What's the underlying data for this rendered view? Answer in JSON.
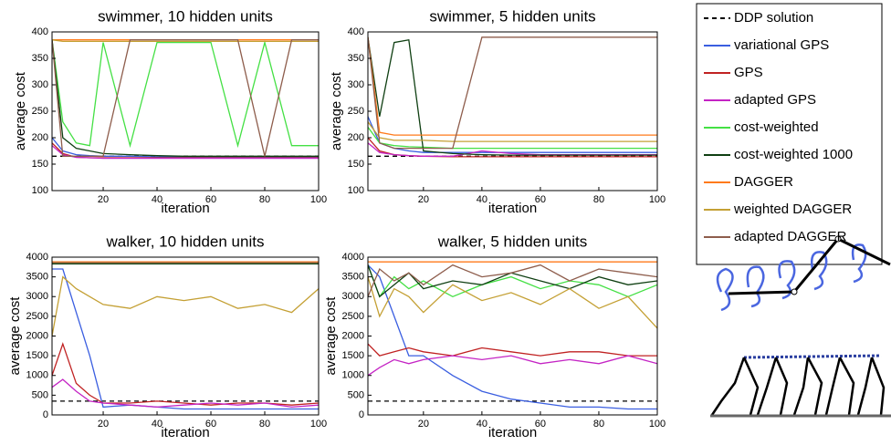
{
  "chart_data": [
    {
      "type": "line",
      "title": "swimmer, 10 hidden units",
      "xlabel": "iteration",
      "ylabel": "average cost",
      "x": [
        1,
        5,
        10,
        15,
        20,
        30,
        40,
        50,
        60,
        70,
        80,
        90,
        100
      ],
      "xlim": [
        1,
        100
      ],
      "xticks": [
        20,
        40,
        60,
        80,
        100
      ],
      "ylim": [
        100,
        400
      ],
      "yticks": [
        100,
        150,
        200,
        250,
        300,
        350,
        400
      ],
      "legend": "outside right",
      "series": [
        {
          "name": "DDP solution",
          "color": "#000000",
          "style": "dashed",
          "values": [
            165,
            165,
            165,
            165,
            165,
            165,
            165,
            165,
            165,
            165,
            165,
            165,
            165
          ]
        },
        {
          "name": "variational GPS",
          "color": "#3a5ee0",
          "values": [
            200,
            175,
            168,
            166,
            165,
            165,
            164,
            164,
            164,
            164,
            164,
            164,
            164
          ]
        },
        {
          "name": "GPS",
          "color": "#c02222",
          "values": [
            190,
            170,
            163,
            162,
            162,
            162,
            162,
            162,
            162,
            162,
            162,
            162,
            162
          ]
        },
        {
          "name": "adapted GPS",
          "color": "#c424c4",
          "values": [
            185,
            168,
            163,
            162,
            161,
            161,
            161,
            161,
            161,
            161,
            161,
            161,
            161
          ]
        },
        {
          "name": "cost-weighted",
          "color": "#44e044",
          "values": [
            385,
            230,
            190,
            185,
            380,
            185,
            380,
            380,
            380,
            185,
            380,
            185,
            185
          ]
        },
        {
          "name": "cost-weighted 1000",
          "color": "#0f3f12",
          "values": [
            385,
            200,
            180,
            175,
            170,
            168,
            166,
            165,
            165,
            165,
            165,
            165,
            165
          ]
        },
        {
          "name": "DAGGER",
          "color": "#ff7a1a",
          "values": [
            385,
            385,
            385,
            385,
            385,
            385,
            385,
            385,
            385,
            385,
            385,
            385,
            385
          ]
        },
        {
          "name": "weighted DAGGER",
          "color": "#c4a034",
          "values": [
            385,
            382,
            382,
            382,
            382,
            382,
            382,
            382,
            382,
            382,
            382,
            382,
            382
          ]
        },
        {
          "name": "adapted DAGGER",
          "color": "#8e5d4c",
          "values": [
            385,
            165,
            165,
            165,
            165,
            385,
            385,
            385,
            385,
            385,
            165,
            385,
            385
          ]
        }
      ]
    },
    {
      "type": "line",
      "title": "swimmer, 5 hidden units",
      "xlabel": "iteration",
      "ylabel": "average cost",
      "x": [
        1,
        5,
        10,
        15,
        20,
        30,
        40,
        50,
        60,
        70,
        80,
        90,
        100
      ],
      "xlim": [
        1,
        100
      ],
      "xticks": [
        20,
        40,
        60,
        80,
        100
      ],
      "ylim": [
        100,
        400
      ],
      "yticks": [
        100,
        150,
        200,
        250,
        300,
        350,
        400
      ],
      "series": [
        {
          "color": "#000000",
          "style": "dashed",
          "values": [
            165,
            165,
            165,
            165,
            165,
            165,
            165,
            165,
            165,
            165,
            165,
            165,
            165
          ]
        },
        {
          "color": "#3a5ee0",
          "values": [
            240,
            190,
            180,
            175,
            172,
            172,
            172,
            172,
            172,
            172,
            172,
            172,
            172
          ]
        },
        {
          "color": "#c02222",
          "values": [
            200,
            175,
            168,
            166,
            165,
            164,
            164,
            164,
            164,
            164,
            164,
            164,
            164
          ]
        },
        {
          "color": "#c424c4",
          "values": [
            190,
            172,
            168,
            166,
            165,
            165,
            175,
            170,
            168,
            168,
            168,
            168,
            168
          ]
        },
        {
          "color": "#44e044",
          "values": [
            220,
            190,
            185,
            183,
            182,
            180,
            180,
            180,
            180,
            180,
            180,
            180,
            180
          ]
        },
        {
          "color": "#0f3f12",
          "values": [
            390,
            240,
            380,
            385,
            175,
            170,
            168,
            167,
            167,
            167,
            167,
            167,
            167
          ]
        },
        {
          "color": "#ff7a1a",
          "values": [
            390,
            210,
            205,
            205,
            205,
            205,
            205,
            205,
            205,
            205,
            205,
            205,
            205
          ]
        },
        {
          "color": "#c4a034",
          "values": [
            230,
            200,
            195,
            195,
            195,
            193,
            193,
            193,
            193,
            193,
            193,
            193,
            193
          ]
        },
        {
          "color": "#8e5d4c",
          "values": [
            390,
            190,
            180,
            180,
            180,
            180,
            390,
            390,
            390,
            390,
            390,
            390,
            390
          ]
        }
      ]
    },
    {
      "type": "line",
      "title": "walker, 10 hidden units",
      "xlabel": "iteration",
      "ylabel": "average cost",
      "x": [
        1,
        5,
        10,
        15,
        20,
        30,
        40,
        50,
        60,
        70,
        80,
        90,
        100
      ],
      "xlim": [
        1,
        100
      ],
      "xticks": [
        20,
        40,
        60,
        80,
        100
      ],
      "ylim": [
        0,
        4000
      ],
      "yticks": [
        0,
        500,
        1000,
        1500,
        2000,
        2500,
        3000,
        3500,
        4000
      ],
      "series": [
        {
          "color": "#000000",
          "style": "dashed",
          "values": [
            350,
            350,
            350,
            350,
            350,
            350,
            350,
            350,
            350,
            350,
            350,
            350,
            350
          ]
        },
        {
          "color": "#3a5ee0",
          "values": [
            3700,
            3700,
            2600,
            1500,
            200,
            250,
            200,
            150,
            150,
            150,
            150,
            150,
            150
          ]
        },
        {
          "color": "#c02222",
          "values": [
            1000,
            1800,
            800,
            500,
            300,
            300,
            350,
            300,
            250,
            300,
            300,
            250,
            300
          ]
        },
        {
          "color": "#c424c4",
          "values": [
            700,
            900,
            600,
            350,
            300,
            250,
            200,
            250,
            300,
            250,
            300,
            200,
            250
          ]
        },
        {
          "color": "#44e044",
          "values": [
            3850,
            3850,
            3850,
            3850,
            3850,
            3850,
            3850,
            3850,
            3850,
            3850,
            3850,
            3850,
            3850
          ]
        },
        {
          "color": "#0f3f12",
          "values": [
            3830,
            3830,
            3830,
            3830,
            3830,
            3830,
            3830,
            3830,
            3830,
            3830,
            3830,
            3830,
            3830
          ]
        },
        {
          "color": "#ff7a1a",
          "values": [
            3880,
            3880,
            3880,
            3880,
            3880,
            3880,
            3880,
            3880,
            3880,
            3880,
            3880,
            3880,
            3880
          ]
        },
        {
          "color": "#c4a034",
          "values": [
            2000,
            3500,
            3200,
            3000,
            2800,
            2700,
            3000,
            2900,
            3000,
            2700,
            2800,
            2600,
            3200
          ]
        },
        {
          "color": "#8e5d4c",
          "values": [
            3860,
            3860,
            3860,
            3860,
            3860,
            3860,
            3860,
            3860,
            3860,
            3860,
            3860,
            3860,
            3860
          ]
        }
      ]
    },
    {
      "type": "line",
      "title": "walker, 5 hidden units",
      "xlabel": "iteration",
      "ylabel": "average cost",
      "x": [
        1,
        5,
        10,
        15,
        20,
        30,
        40,
        50,
        60,
        70,
        80,
        90,
        100
      ],
      "xlim": [
        1,
        100
      ],
      "xticks": [
        20,
        40,
        60,
        80,
        100
      ],
      "ylim": [
        0,
        4000
      ],
      "yticks": [
        0,
        500,
        1000,
        1500,
        2000,
        2500,
        3000,
        3500,
        4000
      ],
      "series": [
        {
          "color": "#000000",
          "style": "dashed",
          "values": [
            350,
            350,
            350,
            350,
            350,
            350,
            350,
            350,
            350,
            350,
            350,
            350,
            350
          ]
        },
        {
          "color": "#3a5ee0",
          "values": [
            3800,
            3500,
            2500,
            1500,
            1500,
            1000,
            600,
            400,
            300,
            200,
            200,
            150,
            150
          ]
        },
        {
          "color": "#c02222",
          "values": [
            1800,
            1500,
            1600,
            1700,
            1600,
            1500,
            1700,
            1600,
            1500,
            1600,
            1600,
            1500,
            1500
          ]
        },
        {
          "color": "#c424c4",
          "values": [
            1000,
            1200,
            1400,
            1300,
            1400,
            1500,
            1400,
            1500,
            1300,
            1400,
            1300,
            1500,
            1300
          ]
        },
        {
          "color": "#44e044",
          "values": [
            3800,
            3000,
            3500,
            3200,
            3400,
            3000,
            3300,
            3500,
            3200,
            3400,
            3300,
            3000,
            3300
          ]
        },
        {
          "color": "#0f3f12",
          "values": [
            3800,
            3000,
            3300,
            3600,
            3200,
            3400,
            3300,
            3600,
            3400,
            3200,
            3500,
            3300,
            3400
          ]
        },
        {
          "color": "#ff7a1a",
          "values": [
            3880,
            3880,
            3880,
            3880,
            3880,
            3880,
            3880,
            3880,
            3880,
            3880,
            3880,
            3880,
            3880
          ]
        },
        {
          "color": "#c4a034",
          "values": [
            3500,
            2500,
            3200,
            3000,
            2600,
            3300,
            2900,
            3100,
            2800,
            3200,
            2700,
            3000,
            2200
          ]
        },
        {
          "color": "#8e5d4c",
          "values": [
            3000,
            3700,
            3400,
            3600,
            3300,
            3800,
            3500,
            3600,
            3800,
            3400,
            3700,
            3600,
            3500
          ]
        }
      ]
    }
  ]
}
